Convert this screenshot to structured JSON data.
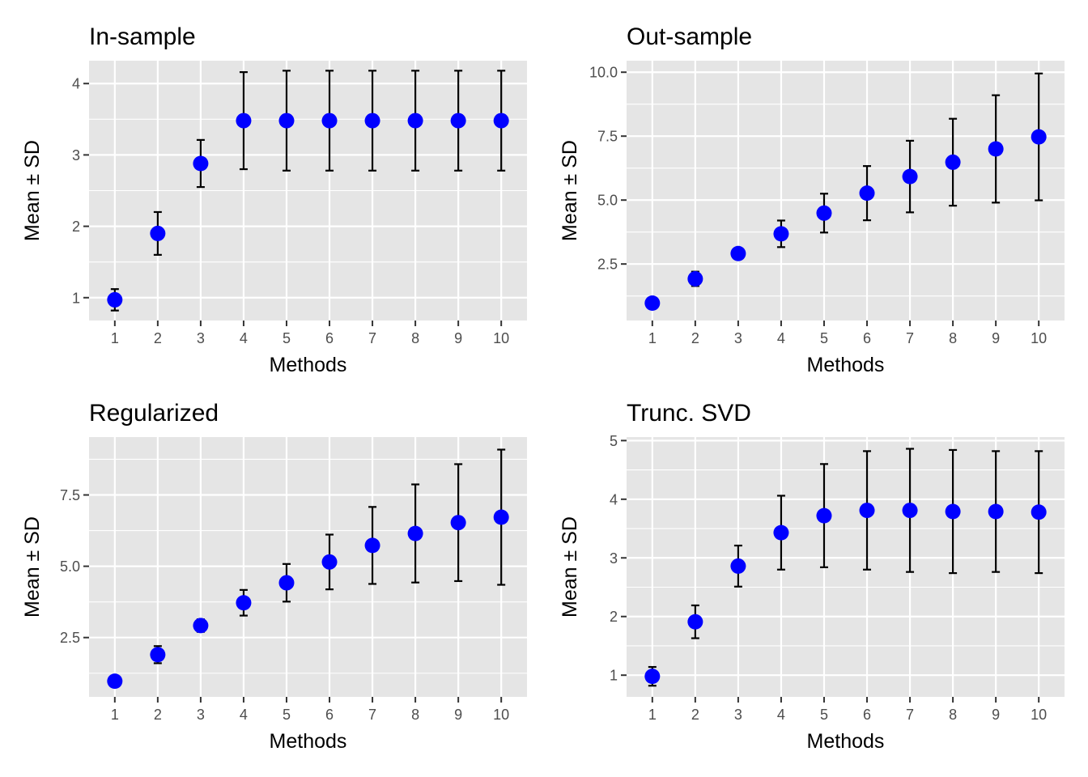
{
  "chart_data": [
    {
      "type": "scatter",
      "title": "In-sample",
      "xlabel": "Methods",
      "ylabel": "Mean ± SD",
      "x": [
        1,
        2,
        3,
        4,
        5,
        6,
        7,
        8,
        9,
        10
      ],
      "mean": [
        0.97,
        1.9,
        2.88,
        3.48,
        3.48,
        3.48,
        3.48,
        3.48,
        3.48,
        3.48
      ],
      "sd": [
        0.15,
        0.3,
        0.33,
        0.68,
        0.7,
        0.7,
        0.7,
        0.7,
        0.7,
        0.7
      ],
      "xlim": [
        0.4,
        10.6
      ],
      "ylim": [
        0.68,
        4.32
      ],
      "yticks": [
        1,
        2,
        3,
        4
      ],
      "ytick_labels": [
        "1",
        "2",
        "3",
        "4"
      ],
      "xtick_labels": [
        "1",
        "2",
        "3",
        "4",
        "5",
        "6",
        "7",
        "8",
        "9",
        "10"
      ]
    },
    {
      "type": "scatter",
      "title": "Out-sample",
      "xlabel": "Methods",
      "ylabel": "Mean ± SD",
      "x": [
        1,
        2,
        3,
        4,
        5,
        6,
        7,
        8,
        9,
        10
      ],
      "mean": [
        0.97,
        1.92,
        2.91,
        3.68,
        4.49,
        5.27,
        5.92,
        6.48,
        7.0,
        7.47
      ],
      "sd": [
        0.18,
        0.28,
        0.2,
        0.52,
        0.76,
        1.06,
        1.4,
        1.7,
        2.1,
        2.48
      ],
      "xlim": [
        0.4,
        10.6
      ],
      "ylim": [
        0.29,
        10.45
      ],
      "yticks": [
        2.5,
        5.0,
        7.5,
        10.0
      ],
      "ytick_labels": [
        "2.5",
        "5.0",
        "7.5",
        "10.0"
      ],
      "xtick_labels": [
        "1",
        "2",
        "3",
        "4",
        "5",
        "6",
        "7",
        "8",
        "9",
        "10"
      ]
    },
    {
      "type": "scatter",
      "title": "Regularized",
      "xlabel": "Methods",
      "ylabel": "Mean ± SD",
      "x": [
        1,
        2,
        3,
        4,
        5,
        6,
        7,
        8,
        9,
        10
      ],
      "mean": [
        0.97,
        1.9,
        2.92,
        3.72,
        4.42,
        5.15,
        5.73,
        6.15,
        6.53,
        6.72
      ],
      "sd": [
        0.18,
        0.3,
        0.22,
        0.45,
        0.66,
        0.96,
        1.35,
        1.72,
        2.05,
        2.37
      ],
      "xlim": [
        0.4,
        10.6
      ],
      "ylim": [
        0.42,
        9.53
      ],
      "yticks": [
        2.5,
        5.0,
        7.5
      ],
      "ytick_labels": [
        "2.5",
        "5.0",
        "7.5"
      ],
      "xtick_labels": [
        "1",
        "2",
        "3",
        "4",
        "5",
        "6",
        "7",
        "8",
        "9",
        "10"
      ]
    },
    {
      "type": "scatter",
      "title": "Trunc. SVD",
      "xlabel": "Methods",
      "ylabel": "Mean ± SD",
      "x": [
        1,
        2,
        3,
        4,
        5,
        6,
        7,
        8,
        9,
        10
      ],
      "mean": [
        0.98,
        1.91,
        2.86,
        3.43,
        3.72,
        3.81,
        3.81,
        3.79,
        3.79,
        3.78
      ],
      "sd": [
        0.16,
        0.28,
        0.35,
        0.63,
        0.88,
        1.01,
        1.05,
        1.05,
        1.03,
        1.04
      ],
      "xlim": [
        0.4,
        10.6
      ],
      "ylim": [
        0.63,
        5.06
      ],
      "yticks": [
        1,
        2,
        3,
        4,
        5
      ],
      "ytick_labels": [
        "1",
        "2",
        "3",
        "4",
        "5"
      ],
      "xtick_labels": [
        "1",
        "2",
        "3",
        "4",
        "5",
        "6",
        "7",
        "8",
        "9",
        "10"
      ]
    }
  ],
  "colors": {
    "panel_background": "#e5e5e5",
    "grid_line": "#ffffff",
    "point_fill": "#0000ff",
    "error_bar": "#000000",
    "tick_text": "#4d4d4d",
    "label_text": "#000000"
  }
}
